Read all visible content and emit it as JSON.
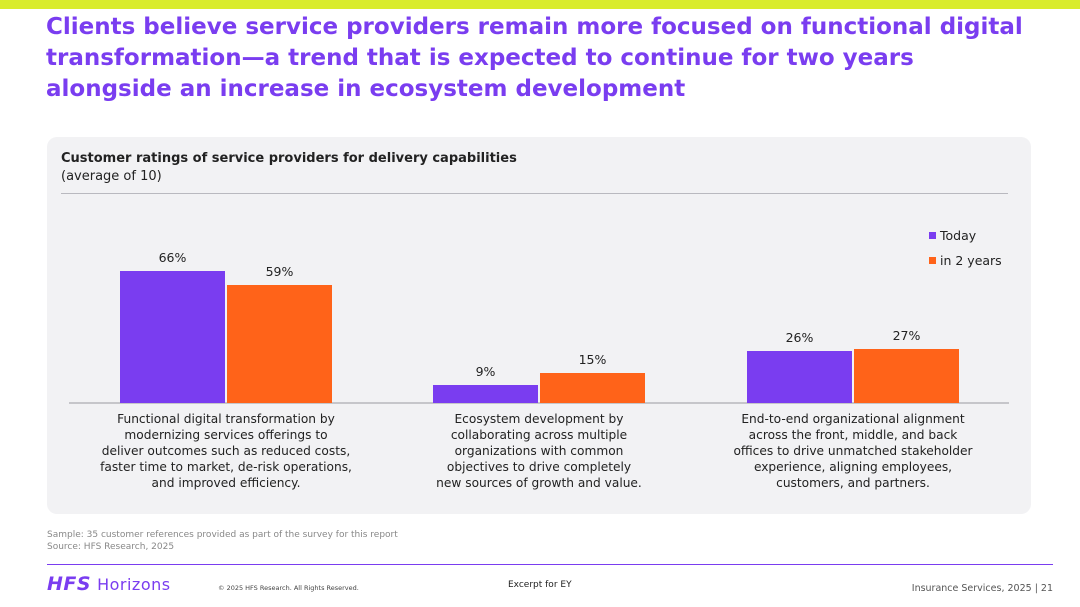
{
  "headline": "Clients believe service providers remain more focused on functional digital transformation—a trend that is expected to continue for two years alongside an increase in ecosystem development",
  "chart_data": {
    "type": "bar",
    "title": "Customer ratings of service providers for delivery capabilities",
    "subtitle": "(average of 10)",
    "categories": [
      [
        "Functional digital transformation by",
        "modernizing services offerings to",
        "deliver outcomes such as reduced costs,",
        "faster time to market, de-risk operations,",
        "and improved efficiency."
      ],
      [
        "Ecosystem development by",
        "collaborating across multiple",
        "organizations with common",
        "objectives to drive completely",
        "new sources of growth and value."
      ],
      [
        "End-to-end organizational alignment",
        "across the front, middle, and back",
        "offices to drive unmatched stakeholder",
        "experience, aligning employees,",
        "customers, and partners."
      ]
    ],
    "series": [
      {
        "name": "Today",
        "color": "#7a3df0",
        "values": [
          66,
          9,
          26
        ]
      },
      {
        "name": "in 2 years",
        "color": "#ff6319",
        "values": [
          59,
          15,
          27
        ]
      }
    ],
    "value_suffix": "%",
    "ylim": [
      0,
      100
    ],
    "legend": "top-right",
    "grid": false
  },
  "notes": {
    "sample": "Sample: 35 customer references provided as part of the survey for this report",
    "source": "Source: HFS Research, 2025"
  },
  "footer": {
    "logo_hfs": "HFS",
    "logo_horizons": "Horizons",
    "copyright": "© 2025 HFS Research. All Rights Reserved.",
    "excerpt": "Excerpt for EY",
    "page_info": "Insurance Services, 2025 | 21"
  }
}
